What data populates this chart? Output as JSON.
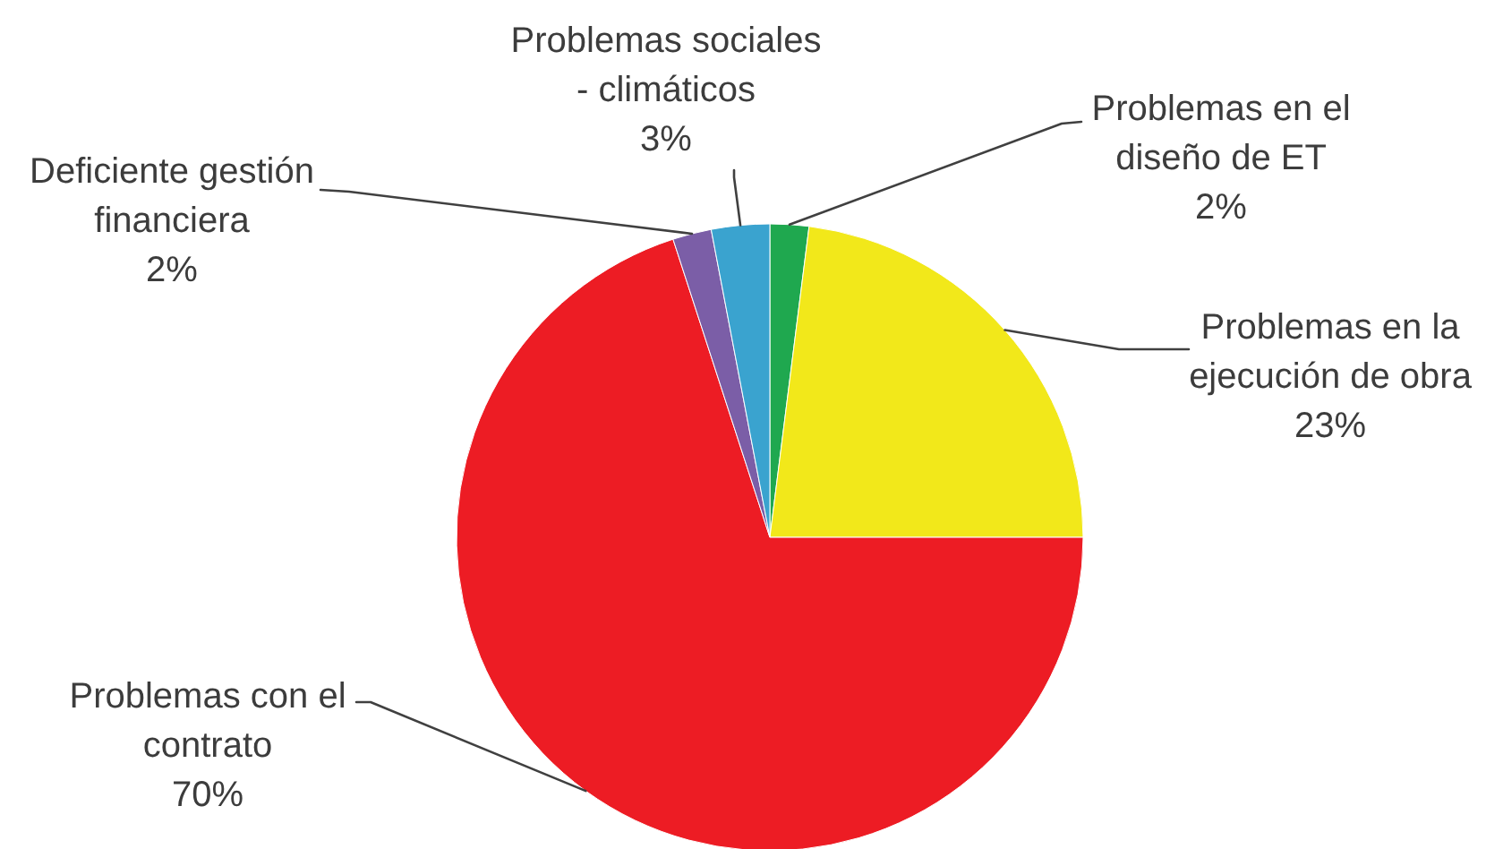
{
  "chart_data": {
    "type": "pie",
    "categories": [
      "Problemas en el diseño de ET",
      "Problemas en la ejecución de obra",
      "Problemas con el contrato",
      "Deficiente gestión financiera",
      "Problemas sociales - climáticos"
    ],
    "values": [
      2,
      23,
      70,
      2,
      3
    ],
    "colors": [
      "#1fa84f",
      "#f2e81a",
      "#ed1c24",
      "#7b5ea7",
      "#3aa3cf"
    ],
    "value_labels": [
      "2%",
      "23%",
      "70%",
      "2%",
      "3%"
    ]
  }
}
